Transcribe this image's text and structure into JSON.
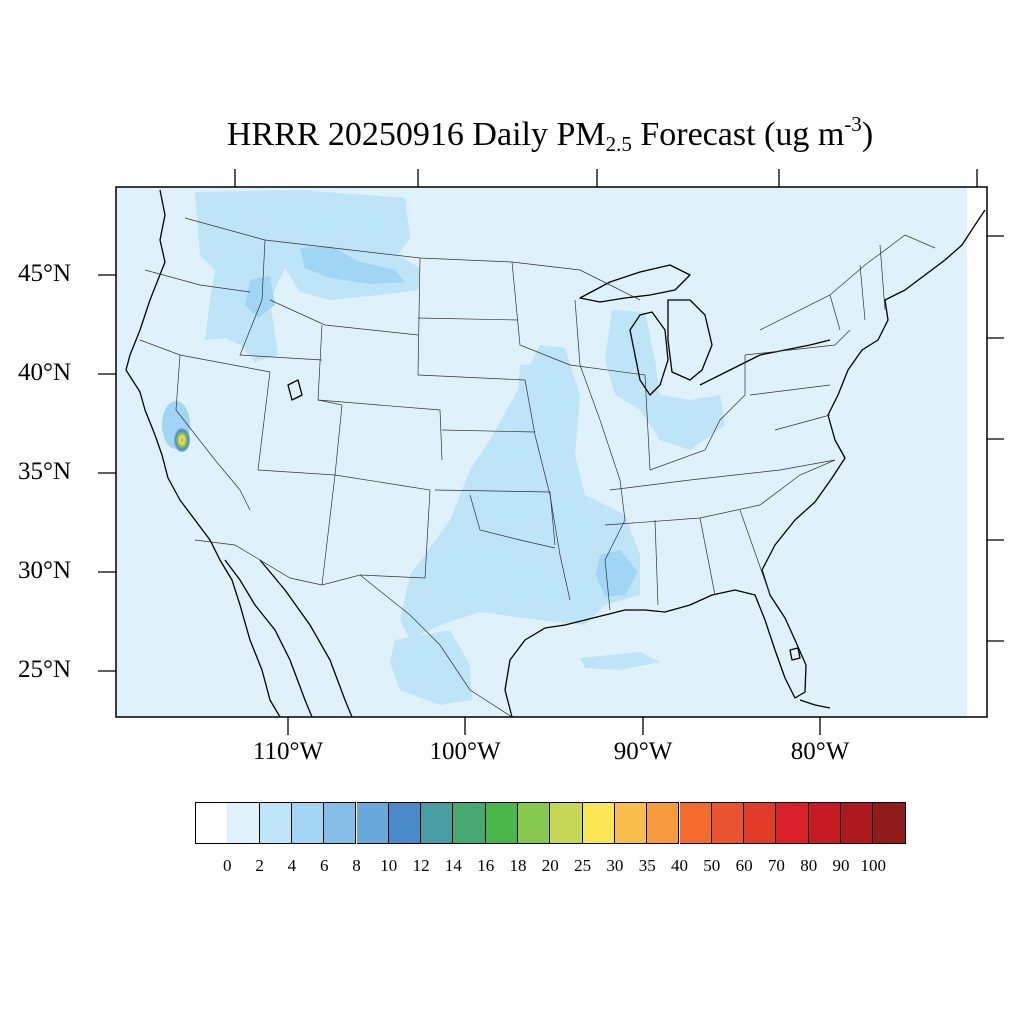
{
  "title": {
    "prefix": "HRRR 20250916 Daily PM",
    "subscript": "2.5",
    "middle": " Forecast (ug m",
    "superscript": "-3",
    "suffix": ")"
  },
  "map": {
    "projection": "lambert-conformal",
    "extent": {
      "lon_min": -120.5,
      "lon_max": -67,
      "lat_min": 22.8,
      "lat_max": 49.5
    },
    "background_color": "#dff1fb",
    "lat_labels": [
      {
        "lat": 45,
        "text": "45°N"
      },
      {
        "lat": 40,
        "text": "40°N"
      },
      {
        "lat": 35,
        "text": "35°N"
      },
      {
        "lat": 30,
        "text": "30°N"
      },
      {
        "lat": 25,
        "text": "25°N"
      }
    ],
    "lon_labels": [
      {
        "lon": -110,
        "text": "110°W"
      },
      {
        "lon": -100,
        "text": "100°W"
      },
      {
        "lon": -90,
        "text": "90°W"
      },
      {
        "lon": -80,
        "text": "80°W"
      }
    ],
    "hotspot": {
      "region": "southern Sierra Nevada, California",
      "peak_value": 40
    },
    "plumes": [
      {
        "region": "Idaho-Montana-Wyoming",
        "value_range": "2-4"
      },
      {
        "region": "Kansas-Oklahoma-Texas",
        "value_range": "2-4"
      },
      {
        "region": "Iowa-Missouri-Illinois",
        "value_range": "2-4"
      },
      {
        "region": "Louisiana-Mississippi",
        "value_range": "4-6"
      },
      {
        "region": "Michigan-Ohio",
        "value_range": "2-4"
      }
    ]
  },
  "colorbar": {
    "ticks": [
      "0",
      "2",
      "4",
      "6",
      "8",
      "10",
      "12",
      "14",
      "16",
      "18",
      "20",
      "25",
      "30",
      "35",
      "40",
      "50",
      "60",
      "70",
      "80",
      "90",
      "100"
    ],
    "colors": [
      "#ffffff",
      "#dff1fb",
      "#bde4f7",
      "#a0d6f3",
      "#84bde6",
      "#68a8db",
      "#4a8ac9",
      "#4a9ca3",
      "#48a872",
      "#4bb64a",
      "#86c74d",
      "#c4d854",
      "#f8e655",
      "#f8be4a",
      "#f79a3c",
      "#f36c2d",
      "#ea5330",
      "#e03c2a",
      "#d72028",
      "#c51b24",
      "#ac1a1f",
      "#911a1b"
    ]
  }
}
